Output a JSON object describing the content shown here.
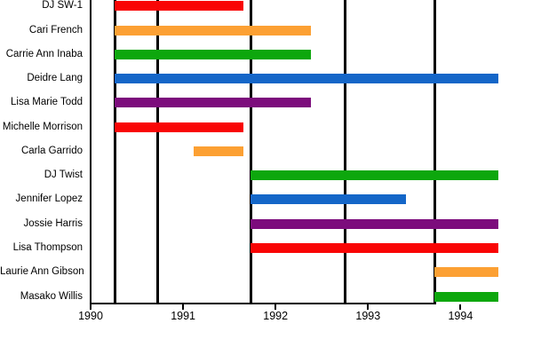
{
  "chart_data": {
    "type": "bar",
    "variant": "horizontal-gantt-timeline",
    "background": "#FFFFFF",
    "axis_color": "#000000",
    "text_color": "#000000",
    "x_axis": {
      "tick_labels": [
        "1990",
        "1991",
        "1992",
        "1993",
        "1994"
      ],
      "tick_values": [
        1990,
        1991,
        1992,
        1993,
        1994
      ],
      "range": [
        1990,
        1994.45
      ],
      "grid": "off"
    },
    "season_divider_lines": [
      1990.26,
      1990.73,
      1991.73,
      1992.75,
      1993.72
    ],
    "palette": {
      "red": "#F90505",
      "orange": "#FCA033",
      "green": "#0DA70D",
      "blue": "#1466C8",
      "purple": "#7C0C7C"
    },
    "rows": [
      {
        "name": "DJ SW-1",
        "start": 1990.26,
        "end": 1991.65,
        "color": "red"
      },
      {
        "name": "Cari French",
        "start": 1990.26,
        "end": 1992.38,
        "color": "orange"
      },
      {
        "name": "Carrie Ann Inaba",
        "start": 1990.26,
        "end": 1992.38,
        "color": "green"
      },
      {
        "name": "Deidre Lang",
        "start": 1990.26,
        "end": 1994.41,
        "color": "blue"
      },
      {
        "name": "Lisa Marie Todd",
        "start": 1990.26,
        "end": 1992.38,
        "color": "purple"
      },
      {
        "name": "Michelle Morrison",
        "start": 1990.26,
        "end": 1991.65,
        "color": "red"
      },
      {
        "name": "Carla Garrido",
        "start": 1991.11,
        "end": 1991.65,
        "color": "orange"
      },
      {
        "name": "DJ Twist",
        "start": 1991.73,
        "end": 1994.41,
        "color": "green"
      },
      {
        "name": "Jennifer Lopez",
        "start": 1991.73,
        "end": 1993.41,
        "color": "blue"
      },
      {
        "name": "Jossie Harris",
        "start": 1991.73,
        "end": 1994.41,
        "color": "purple"
      },
      {
        "name": "Lisa Thompson",
        "start": 1991.73,
        "end": 1994.41,
        "color": "red"
      },
      {
        "name": "Laurie Ann Gibson",
        "start": 1993.72,
        "end": 1994.41,
        "color": "orange"
      },
      {
        "name": "Masako Willis",
        "start": 1993.72,
        "end": 1994.41,
        "color": "green"
      }
    ]
  }
}
